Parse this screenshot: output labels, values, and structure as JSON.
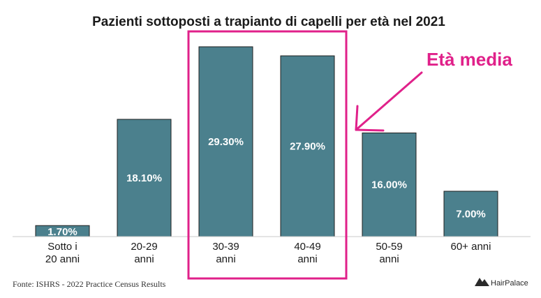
{
  "chart_data": {
    "type": "bar",
    "title": "Pazienti sottoposti a trapianto di capelli per  età nel 2021",
    "categories": [
      [
        "Sotto i",
        "20 anni"
      ],
      [
        "20-29",
        "anni"
      ],
      [
        "30-39",
        "anni"
      ],
      [
        "40-49",
        "anni"
      ],
      [
        "50-59",
        "anni"
      ],
      [
        "60+ anni"
      ]
    ],
    "values": [
      1.7,
      18.1,
      29.3,
      27.9,
      16.0,
      7.0
    ],
    "value_labels": [
      "1.70%",
      "18.10%",
      "29.30%",
      "27.90%",
      "16.00%",
      "7.00%"
    ],
    "ylim": [
      0,
      30
    ],
    "grid": false,
    "bar_color": "#4b808d",
    "highlighted_categories": [
      2,
      3
    ]
  },
  "annotation": {
    "text": "Età media",
    "color": "#e0218a"
  },
  "source": "Fonte: ISHRS - 2022 Practice Census Results",
  "brand": {
    "name": "HairPalace",
    "icon": "mountain-logo-icon"
  }
}
